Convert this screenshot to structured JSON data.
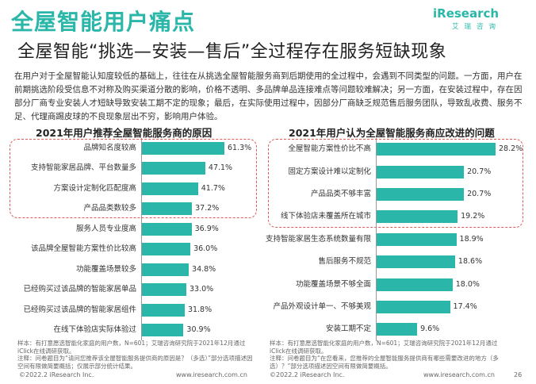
{
  "page": {
    "title": "全屋智能用户痛点",
    "subtitle": "全屋智能“挑选—安装—售后”全过程存在服务短缺现象",
    "logo_main": "iResearch",
    "logo_sub": "艾瑞咨询",
    "body": "在用户对于全屋智能认知度较低的基础上，往往在从挑选全屋智能服务商到后期使用的全过程中，会遇到不同类型的问题。一方面，用户在前期挑选阶段受信息不对称及购买渠道分散的影响，价格不透明、多品牌单品连接难点等问题较难解决；另一方面，在安装过程中，存在因部分厂商专业安装人才短缺导致安装工期不定的现象；最后，在实际使用过程中，因部分厂商缺乏规范售后服务团队，导致乱收费、服务不足、代理商踢皮球的不良现象层出不穷，影响用户体验。",
    "note_left": "样本：有打意愿选智能化家庭的用户数，N=601；艾瑞咨询研究院于2021年12月通过iClick在线调研获取。\n注释：问卷题目为“请问您推荐该全屋智能服务提供商的原因是？（多选）”部分选项描述因空间有限做简要概括；仅展示部分统计结果。",
    "note_right": "样本：有打意愿选智能化家庭的用户数，N=601；艾瑞咨询研究院于2021年12月通过iClick在线调研获取。\n注释：问卷题目为“在您看来，您推荐的全屋智能服务提供商有哪些需要改进的地方（多选）？”部分选项描述因空间有限做简要概括。",
    "footer_left_copy": "©2022.2 iResearch Inc.",
    "footer_left_url": "www.iresearch.com.cn",
    "footer_right_copy": "©2022.2 iResearch Inc.",
    "footer_right_url": "www.iresearch.com.cn",
    "page_number": "26"
  },
  "colors": {
    "accent": "#2ab7a9",
    "highlight": "#e05a5a"
  },
  "chart_data": [
    {
      "type": "bar",
      "orientation": "horizontal",
      "title": "2021年用户推荐全屋智能服务商的原因",
      "categories": [
        "品牌知名度较高",
        "支持智能家居品牌、平台数量多",
        "方案设计定制化匹配度高",
        "产品品类数较多",
        "服务人员专业度高",
        "该品牌全屋智能方案性价比较高",
        "功能覆盖场景较多",
        "已经购买过该品牌的智能家居单品",
        "已经购买过该品牌的智能家居组件",
        "在线下体验店实际体验过"
      ],
      "values": [
        61.3,
        47.1,
        41.7,
        37.2,
        36.9,
        36.0,
        34.8,
        33.0,
        31.8,
        30.9
      ],
      "labels": [
        "61.3%",
        "47.1%",
        "41.7%",
        "37.2%",
        "36.9%",
        "36.0%",
        "34.8%",
        "33.0%",
        "31.8%",
        "30.9%"
      ],
      "highlighted_rows": [
        0,
        1,
        2,
        3
      ]
    },
    {
      "type": "bar",
      "orientation": "horizontal",
      "title": "2021年用户认为全屋智能服务商应改进的问题",
      "categories": [
        "全屋智能方案性价比不高",
        "固定方案设计难以定制化",
        "产品品类不够丰富",
        "线下体验店未覆盖所在城市",
        "支持智能家居生态系统数量有限",
        "售后服务不规范",
        "功能覆盖场景不够全面",
        "产品外观设计单一、不够美观",
        "安装工期不定"
      ],
      "values": [
        28.2,
        20.7,
        20.7,
        19.2,
        18.9,
        18.6,
        18.0,
        17.4,
        9.6
      ],
      "labels": [
        "28.2%",
        "20.7%",
        "20.7%",
        "19.2%",
        "18.9%",
        "18.6%",
        "18.0%",
        "17.4%",
        "9.6%"
      ],
      "highlighted_rows": [
        0,
        1,
        2,
        3
      ]
    }
  ]
}
